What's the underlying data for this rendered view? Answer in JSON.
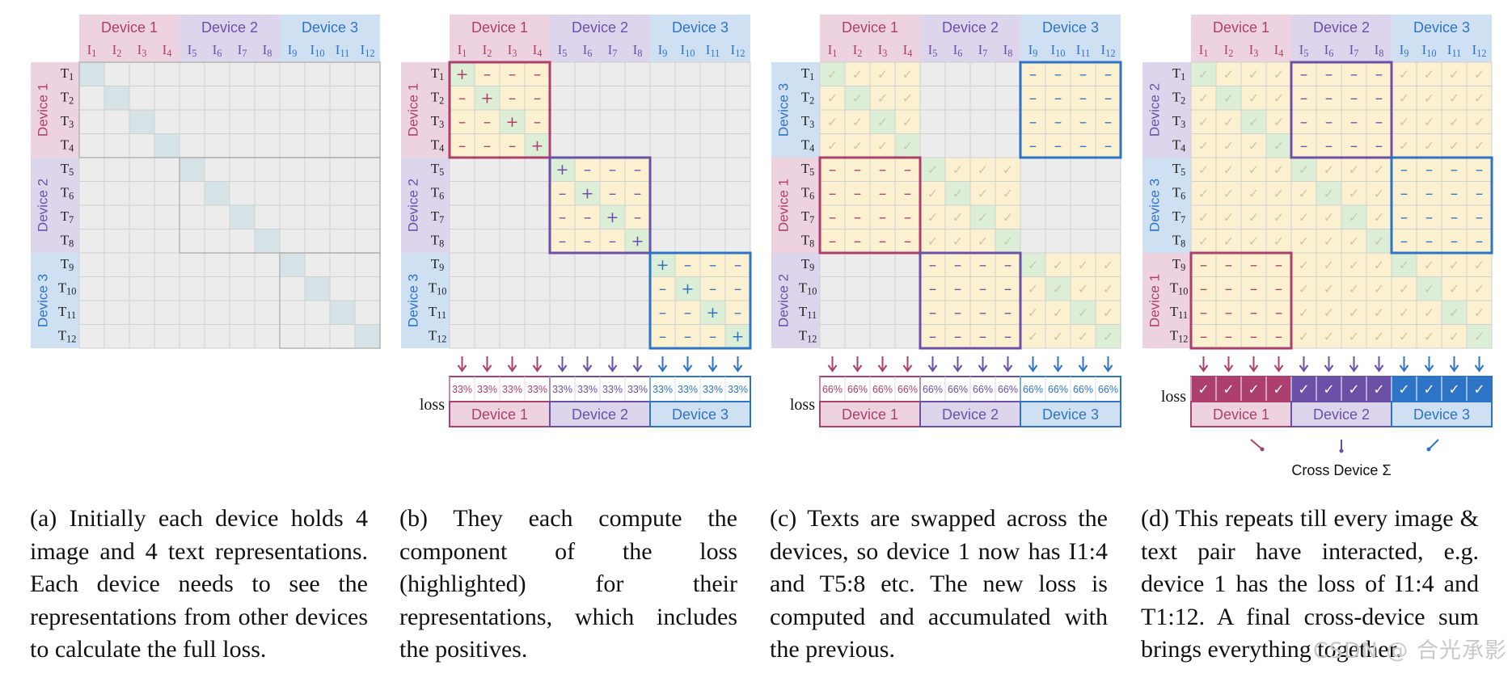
{
  "devices": [
    "Device 1",
    "Device 2",
    "Device 3"
  ],
  "image_labels": [
    "I1",
    "I2",
    "I3",
    "I4",
    "I5",
    "I6",
    "I7",
    "I8",
    "I9",
    "I10",
    "I11",
    "I12"
  ],
  "text_labels": [
    "T1",
    "T2",
    "T3",
    "T4",
    "T5",
    "T6",
    "T7",
    "T8",
    "T9",
    "T10",
    "T11",
    "T12"
  ],
  "symbols": {
    "positive": "+",
    "negative": "–",
    "check": "✓"
  },
  "loss_label": "loss",
  "panel_b_loss_percent": "33%",
  "panel_c_loss_percent": "66%",
  "cross_device_label": "Cross Device Σ",
  "colors": {
    "device1": "#ad3f6e",
    "device1_fill": "#ecd3df",
    "device2": "#6b50a8",
    "device2_fill": "#ddd5eb",
    "device3": "#2e74c6",
    "device3_fill": "#cfe0f3",
    "cell": "#ececec",
    "diag_a": "#d5e3e6",
    "highlight": "#fbf1d0",
    "positive_cell": "#dcefd6"
  },
  "captions": {
    "a": "(a) Initially each device holds 4 image and 4 text representations. Each device needs to see the representations from other devices to calculate the full loss.",
    "b": "(b) They each compute the component of the loss (highlighted) for their representations, which includes the positives.",
    "c": "(c) Texts are swapped across the devices, so device 1 now has I1:4 and T5:8 etc. The new loss is computed and accumulated with the previous.",
    "d": "(d) This repeats till every image & text pair have interacted, e.g. device 1 has the loss of I1:4 and T1:12. A final cross-device sum brings everything together."
  },
  "watermark": "CSDN @ 合光承影"
}
